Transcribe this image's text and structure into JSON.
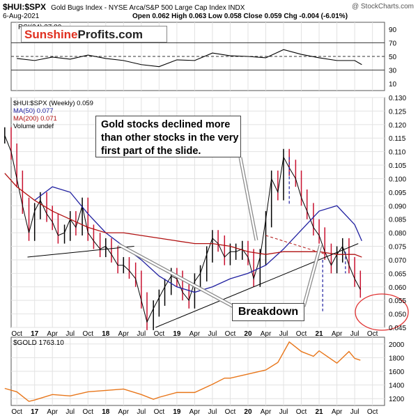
{
  "header": {
    "symbol": "$HUI:$SPX",
    "description": "Gold Bugs Index - NYSE Arca/S&P 500 Large Cap Index  INDX",
    "date": "6-Aug-2021",
    "ohlc": "Open 0.062  High 0.063  Low 0.058  Close 0.059  Chg -0.004 (-6.01%)",
    "watermark": "@ StockCharts.com"
  },
  "brand": {
    "part1": "Sunshine",
    "part2": "Profits.com"
  },
  "annotations": {
    "note_main": "Gold stocks declined more than other stocks in the very first part of the slide.",
    "note_breakdown": "Breakdown"
  },
  "colors": {
    "price": "#000000",
    "ma50": "#1f1fa0",
    "ma200": "#b01010",
    "down_bar": "#c8102e",
    "gold": "#e8761a",
    "rsi": "#000000",
    "highlight_circle": "#e03030"
  },
  "chart_data": [
    {
      "type": "line",
      "name": "rsi_panel",
      "legend": [
        "RSI(24) 37.80"
      ],
      "y_ticks": [
        90,
        70,
        50,
        30,
        10
      ],
      "ylim": [
        0,
        100
      ],
      "reference_lines": [
        70,
        50,
        30
      ],
      "x": [
        2016.75,
        2017.0,
        2017.25,
        2017.5,
        2017.75,
        2018.0,
        2018.25,
        2018.5,
        2018.75,
        2019.0,
        2019.25,
        2019.5,
        2019.75,
        2020.0,
        2020.25,
        2020.5,
        2020.75,
        2021.0,
        2021.25,
        2021.5,
        2021.6
      ],
      "values": [
        47,
        44,
        49,
        46,
        52,
        47,
        44,
        38,
        35,
        45,
        44,
        55,
        51,
        50,
        48,
        60,
        53,
        48,
        44,
        44,
        38
      ]
    },
    {
      "type": "line",
      "name": "hui_spx_panel",
      "legend": [
        "$HUI:$SPX (Weekly) 0.059",
        "MA(50) 0.077",
        "MA(200) 0.071",
        "Volume undef"
      ],
      "y_ticks": [
        0.13,
        0.125,
        0.12,
        0.115,
        0.11,
        0.105,
        0.1,
        0.095,
        0.09,
        0.085,
        0.08,
        0.075,
        0.07,
        0.065,
        0.06,
        0.055,
        0.05,
        0.045
      ],
      "ylim": [
        0.045,
        0.13
      ],
      "x_ticks": [
        "Oct",
        "17",
        "Apr",
        "Jul",
        "Oct",
        "18",
        "Apr",
        "Jul",
        "Oct",
        "19",
        "Apr",
        "Jul",
        "Oct",
        "20",
        "Apr",
        "Jul",
        "Oct",
        "21",
        "Apr",
        "Jul",
        "Oct"
      ],
      "series": [
        {
          "name": "$HUI:$SPX",
          "x": [
            2016.58,
            2016.67,
            2016.75,
            2016.83,
            2016.92,
            2017.0,
            2017.08,
            2017.17,
            2017.25,
            2017.33,
            2017.42,
            2017.5,
            2017.58,
            2017.67,
            2017.75,
            2017.83,
            2017.92,
            2018.0,
            2018.08,
            2018.17,
            2018.25,
            2018.33,
            2018.42,
            2018.5,
            2018.58,
            2018.67,
            2018.75,
            2018.83,
            2018.92,
            2019.0,
            2019.08,
            2019.17,
            2019.25,
            2019.33,
            2019.42,
            2019.5,
            2019.58,
            2019.67,
            2019.75,
            2019.83,
            2019.92,
            2020.0,
            2020.08,
            2020.17,
            2020.25,
            2020.33,
            2020.42,
            2020.5,
            2020.58,
            2020.67,
            2020.75,
            2020.83,
            2020.92,
            2021.0,
            2021.08,
            2021.17,
            2021.25,
            2021.33,
            2021.42,
            2021.5,
            2021.58
          ],
          "values": [
            0.116,
            0.11,
            0.1,
            0.09,
            0.08,
            0.088,
            0.092,
            0.087,
            0.084,
            0.079,
            0.08,
            0.085,
            0.082,
            0.09,
            0.08,
            0.077,
            0.074,
            0.075,
            0.072,
            0.068,
            0.068,
            0.066,
            0.063,
            0.055,
            0.047,
            0.052,
            0.056,
            0.06,
            0.064,
            0.063,
            0.058,
            0.055,
            0.062,
            0.065,
            0.072,
            0.078,
            0.076,
            0.071,
            0.073,
            0.073,
            0.074,
            0.071,
            0.063,
            0.071,
            0.085,
            0.1,
            0.095,
            0.108,
            0.104,
            0.1,
            0.093,
            0.088,
            0.082,
            0.079,
            0.073,
            0.068,
            0.072,
            0.075,
            0.068,
            0.063,
            0.059
          ]
        },
        {
          "name": "MA(50)",
          "x": [
            2017.0,
            2017.25,
            2017.5,
            2017.75,
            2018.0,
            2018.25,
            2018.5,
            2018.75,
            2019.0,
            2019.25,
            2019.5,
            2019.75,
            2020.0,
            2020.25,
            2020.5,
            2020.75,
            2021.0,
            2021.25,
            2021.5,
            2021.6
          ],
          "values": [
            0.092,
            0.097,
            0.095,
            0.087,
            0.08,
            0.075,
            0.07,
            0.064,
            0.06,
            0.058,
            0.06,
            0.063,
            0.065,
            0.068,
            0.074,
            0.081,
            0.088,
            0.09,
            0.083,
            0.077
          ]
        },
        {
          "name": "MA(200)",
          "x": [
            2016.58,
            2016.75,
            2017.0,
            2017.25,
            2017.5,
            2017.75,
            2018.0,
            2018.25,
            2018.5,
            2018.75,
            2019.0,
            2019.25,
            2019.5,
            2019.75,
            2020.0,
            2020.25,
            2020.5,
            2020.75,
            2021.0,
            2021.25,
            2021.5,
            2021.6
          ],
          "values": [
            0.102,
            0.097,
            0.092,
            0.088,
            0.085,
            0.082,
            0.08,
            0.08,
            0.079,
            0.078,
            0.077,
            0.076,
            0.076,
            0.075,
            0.073,
            0.072,
            0.073,
            0.073,
            0.073,
            0.072,
            0.072,
            0.071
          ]
        }
      ],
      "trendlines": [
        {
          "from": [
            2016.9,
            0.071
          ],
          "to": [
            2018.4,
            0.075
          ]
        },
        {
          "from": [
            2018.7,
            0.045
          ],
          "to": [
            2021.55,
            0.076
          ]
        },
        {
          "from": [
            2020.25,
            0.079
          ],
          "to": [
            2021.1,
            0.072
          ],
          "style": "dashed"
        }
      ]
    },
    {
      "type": "line",
      "name": "gold_panel",
      "legend": [
        "$GOLD 1763.10"
      ],
      "y_ticks": [
        2000,
        1800,
        1600,
        1400,
        1200
      ],
      "ylim": [
        1100,
        2100
      ],
      "x_ticks": [
        "Oct",
        "17",
        "Apr",
        "Jul",
        "Oct",
        "18",
        "Apr",
        "Jul",
        "Oct",
        "19",
        "Apr",
        "Jul",
        "Oct",
        "20",
        "Apr",
        "Jul",
        "Oct",
        "21",
        "Apr",
        "Jul",
        "Oct"
      ],
      "x": [
        2016.58,
        2016.75,
        2016.92,
        2017.0,
        2017.25,
        2017.5,
        2017.75,
        2018.0,
        2018.25,
        2018.5,
        2018.67,
        2018.75,
        2019.0,
        2019.25,
        2019.5,
        2019.67,
        2019.75,
        2020.0,
        2020.25,
        2020.42,
        2020.58,
        2020.75,
        2020.92,
        2021.0,
        2021.25,
        2021.42,
        2021.5,
        2021.58
      ],
      "values": [
        1350,
        1300,
        1160,
        1180,
        1260,
        1240,
        1300,
        1320,
        1340,
        1260,
        1190,
        1220,
        1290,
        1290,
        1410,
        1500,
        1500,
        1560,
        1620,
        1730,
        2030,
        1890,
        1820,
        1900,
        1720,
        1890,
        1790,
        1763
      ]
    }
  ]
}
